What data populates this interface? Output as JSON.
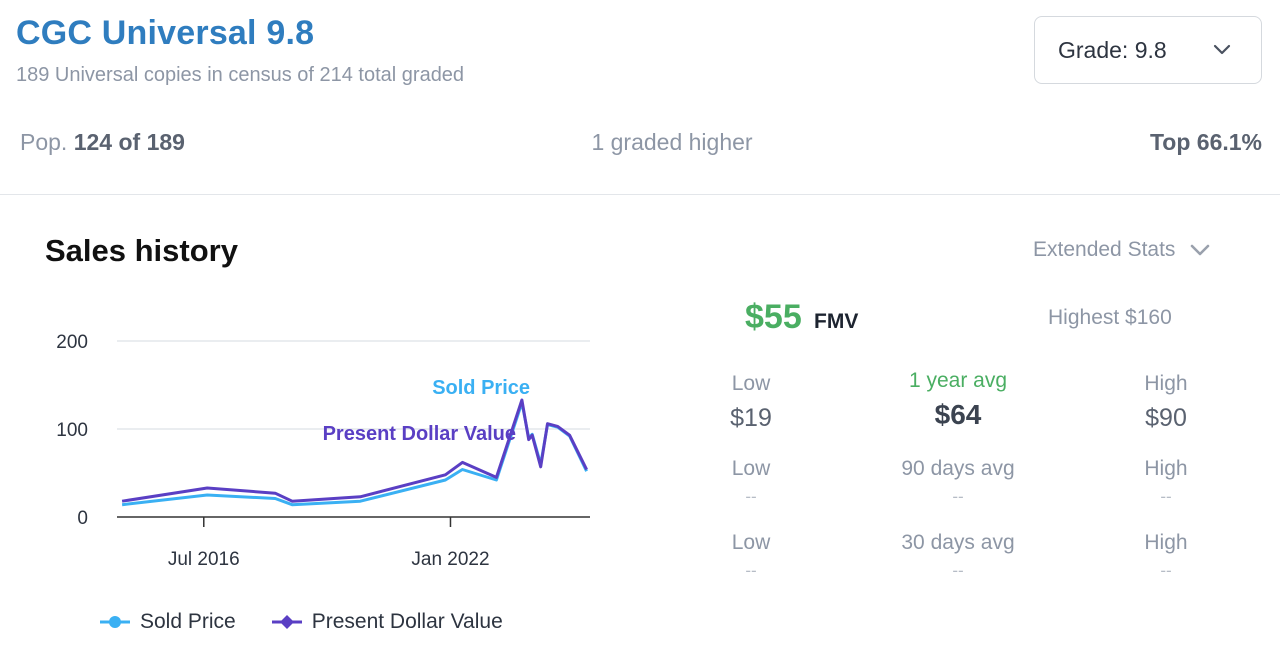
{
  "header": {
    "title": "CGC Universal 9.8",
    "subtitle": "189 Universal copies in census of 214 total graded",
    "grade_select": {
      "value": "Grade: 9.8"
    }
  },
  "population": {
    "prefix": "Pop.",
    "value": "124 of 189",
    "graded_higher": "1 graded higher",
    "top": "Top 66.1%"
  },
  "sales": {
    "title": "Sales history",
    "extended_stats": "Extended Stats"
  },
  "fmv": {
    "price": "$55",
    "label": "FMV",
    "highest": "Highest $160"
  },
  "stats": [
    {
      "low_label": "Low",
      "low": "$19",
      "avg_label": "1 year avg",
      "avg": "$64",
      "high_label": "High",
      "high": "$90"
    },
    {
      "low_label": "Low",
      "low": "--",
      "avg_label": "90 days avg",
      "avg": "--",
      "high_label": "High",
      "high": "--"
    },
    {
      "low_label": "Low",
      "low": "--",
      "avg_label": "30 days avg",
      "avg": "--",
      "high_label": "High",
      "high": "--"
    }
  ],
  "colors": {
    "sold": "#3ab0f3",
    "present": "#5a3fc4",
    "title": "#2f7dbf",
    "fmv": "#4aae62"
  },
  "chart_data": {
    "type": "line",
    "x_ticks": [
      "Jul 2016",
      "Jan 2022"
    ],
    "y_ticks": [
      0,
      100,
      200
    ],
    "ylim": [
      0,
      200
    ],
    "grid": true,
    "series": [
      {
        "name": "Sold Price",
        "color": "#3ab0f3",
        "points": [
          [
            0,
            14
          ],
          [
            5,
            25
          ],
          [
            9,
            21
          ],
          [
            10,
            14
          ],
          [
            14,
            18
          ],
          [
            19,
            42
          ],
          [
            20,
            54
          ],
          [
            22,
            42
          ],
          [
            23.5,
            130
          ],
          [
            23.9,
            90
          ],
          [
            24.1,
            94
          ],
          [
            24.6,
            60
          ],
          [
            25,
            105
          ],
          [
            25.6,
            102
          ],
          [
            26.3,
            92
          ],
          [
            27.3,
            52
          ]
        ]
      },
      {
        "name": "Present Dollar Value",
        "color": "#5a3fc4",
        "points": [
          [
            0,
            18
          ],
          [
            5,
            33
          ],
          [
            9,
            27
          ],
          [
            10,
            18
          ],
          [
            14,
            23
          ],
          [
            19,
            48
          ],
          [
            20,
            62
          ],
          [
            22,
            45
          ],
          [
            23.5,
            133
          ],
          [
            23.9,
            88
          ],
          [
            24.1,
            93
          ],
          [
            24.6,
            57
          ],
          [
            25,
            106
          ],
          [
            25.6,
            103
          ],
          [
            26.3,
            93
          ],
          [
            27.3,
            54
          ]
        ]
      }
    ],
    "annotations": [
      "Sold Price",
      "Present Dollar Value"
    ]
  }
}
